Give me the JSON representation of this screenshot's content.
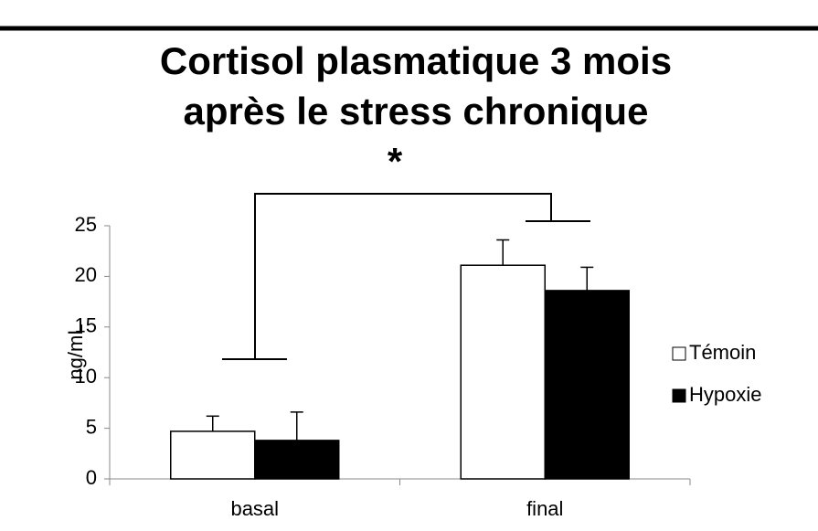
{
  "chart_data": {
    "type": "bar",
    "title": [
      "Cortisol plasmatique 3 mois",
      "après le stress chronique"
    ],
    "annotation": "*",
    "y_label": "ng/mL",
    "categories": [
      "basal",
      "final"
    ],
    "series": [
      {
        "name": "Témoin",
        "color": "#ffffff",
        "values": [
          4.7,
          21.1
        ],
        "errors": [
          1.5,
          2.5
        ]
      },
      {
        "name": "Hypoxie",
        "color": "#000000",
        "values": [
          3.8,
          18.6
        ],
        "errors": [
          2.8,
          2.3
        ]
      }
    ],
    "ylim": [
      0,
      25
    ],
    "yticks": [
      0,
      5,
      10,
      15,
      20,
      25
    ],
    "grid": false,
    "legend": "right"
  }
}
